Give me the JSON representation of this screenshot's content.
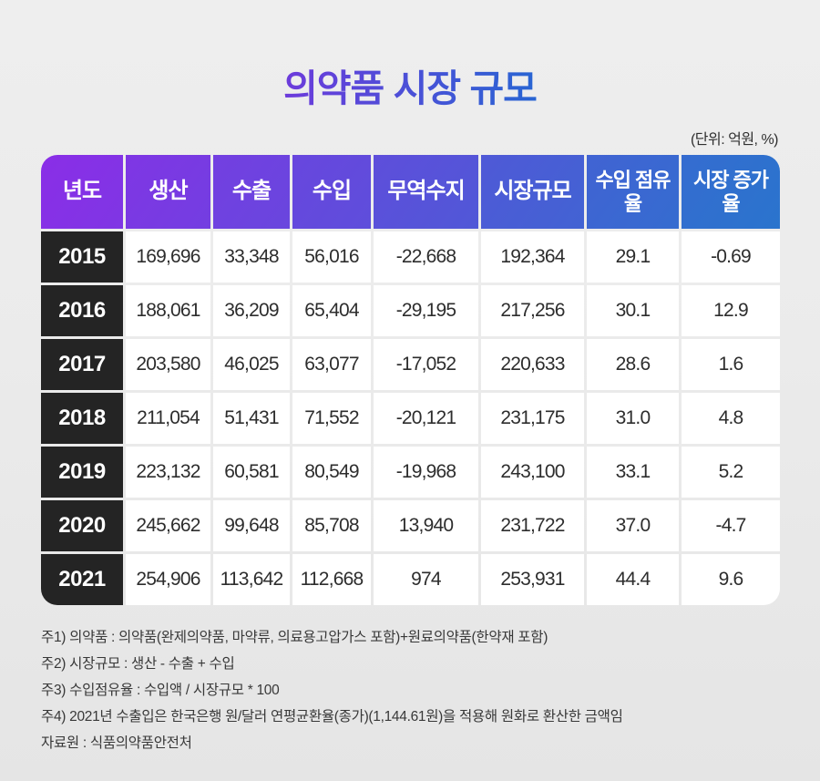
{
  "title": "의약품 시장 규모",
  "unit_label": "(단위: 억원, %)",
  "colors": {
    "title_gradient_start": "#7b32dd",
    "title_gradient_end": "#1a6ed1",
    "header_gradient_start": "#8A2EE7",
    "header_gradient_end": "#2A74CD",
    "year_cell_bg": "#242424",
    "data_cell_bg": "#ffffff",
    "page_bg": "#ebebeb"
  },
  "table": {
    "columns": [
      "년도",
      "생산",
      "수출",
      "수입",
      "무역수지",
      "시장규모",
      "수입 점유율",
      "시장 증가율"
    ],
    "rows": [
      {
        "year": "2015",
        "values": [
          "169,696",
          "33,348",
          "56,016",
          "-22,668",
          "192,364",
          "29.1",
          "-0.69"
        ]
      },
      {
        "year": "2016",
        "values": [
          "188,061",
          "36,209",
          "65,404",
          "-29,195",
          "217,256",
          "30.1",
          "12.9"
        ]
      },
      {
        "year": "2017",
        "values": [
          "203,580",
          "46,025",
          "63,077",
          "-17,052",
          "220,633",
          "28.6",
          "1.6"
        ]
      },
      {
        "year": "2018",
        "values": [
          "211,054",
          "51,431",
          "71,552",
          "-20,121",
          "231,175",
          "31.0",
          "4.8"
        ]
      },
      {
        "year": "2019",
        "values": [
          "223,132",
          "60,581",
          "80,549",
          "-19,968",
          "243,100",
          "33.1",
          "5.2"
        ]
      },
      {
        "year": "2020",
        "values": [
          "245,662",
          "99,648",
          "85,708",
          "13,940",
          "231,722",
          "37.0",
          "-4.7"
        ]
      },
      {
        "year": "2021",
        "values": [
          "254,906",
          "113,642",
          "112,668",
          "974",
          "253,931",
          "44.4",
          "9.6"
        ]
      }
    ]
  },
  "footnotes": [
    "주1) 의약품 : 의약품(완제의약품, 마약류, 의료용고압가스 포함)+원료의약품(한약재 포함)",
    "주2) 시장규모 : 생산 - 수출 + 수입",
    "주3) 수입점유율 : 수입액 / 시장규모 * 100",
    "주4) 2021년 수출입은 한국은행 원/달러 연평균환율(종가)(1,144.61원)을 적용해 원화로 환산한 금액임",
    "자료원 : 식품의약품안전처"
  ]
}
